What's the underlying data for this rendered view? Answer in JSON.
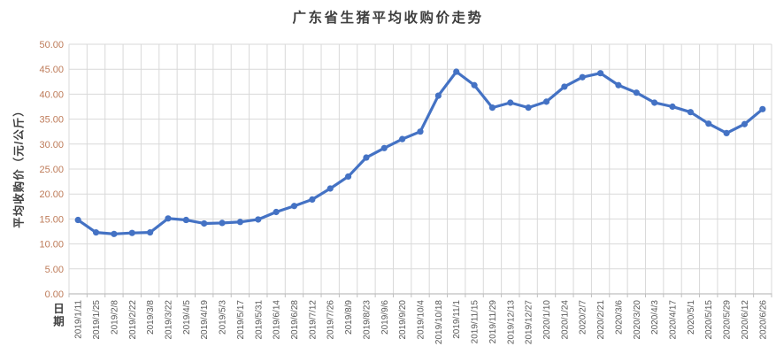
{
  "chart_data": {
    "type": "line",
    "title": "广东省生猪平均收购价走势",
    "ylabel": "平均收购价（元/公斤）",
    "xlabel": "日期",
    "ylim": [
      0,
      50
    ],
    "ytick_step": 5,
    "ytick_format_decimals": 2,
    "grid": true,
    "legend_position": "none",
    "categories": [
      "2019/1/11",
      "2019/1/25",
      "2019/2/8",
      "2019/2/22",
      "2019/3/8",
      "2019/3/22",
      "2019/4/5",
      "2019/4/19",
      "2019/5/3",
      "2019/5/17",
      "2019/5/31",
      "2019/6/14",
      "2019/6/28",
      "2019/7/12",
      "2019/7/26",
      "2019/8/9",
      "2019/8/23",
      "2019/9/6",
      "2019/9/20",
      "2019/10/4",
      "2019/10/18",
      "2019/11/1",
      "2019/11/15",
      "2019/11/29",
      "2019/12/13",
      "2019/12/27",
      "2020/1/10",
      "2020/1/24",
      "2020/2/7",
      "2020/2/21",
      "2020/3/6",
      "2020/3/20",
      "2020/4/3",
      "2020/4/17",
      "2020/5/1",
      "2020/5/15",
      "2020/5/29",
      "2020/6/12",
      "2020/6/26"
    ],
    "values": [
      14.8,
      12.3,
      12.0,
      12.2,
      12.3,
      15.1,
      14.8,
      14.1,
      14.2,
      14.4,
      14.9,
      16.4,
      17.6,
      18.9,
      21.1,
      23.5,
      27.3,
      29.2,
      31.0,
      32.5,
      39.7,
      44.5,
      41.8,
      37.3,
      38.3,
      37.3,
      38.5,
      41.5,
      43.4,
      44.2,
      41.8,
      40.3,
      38.3,
      37.5,
      36.4,
      34.1,
      32.2,
      34.0,
      37.0
    ],
    "colors": {
      "line": "#4472C4",
      "marker": "#4472C4",
      "gridline": "#D9D9D9",
      "axis_line": "#BFBFBF",
      "y_tick_label": "#BE7B59",
      "x_tick_label": "#595959",
      "title": "#3F3F3F",
      "axis_title": "#3F3F3F"
    }
  }
}
